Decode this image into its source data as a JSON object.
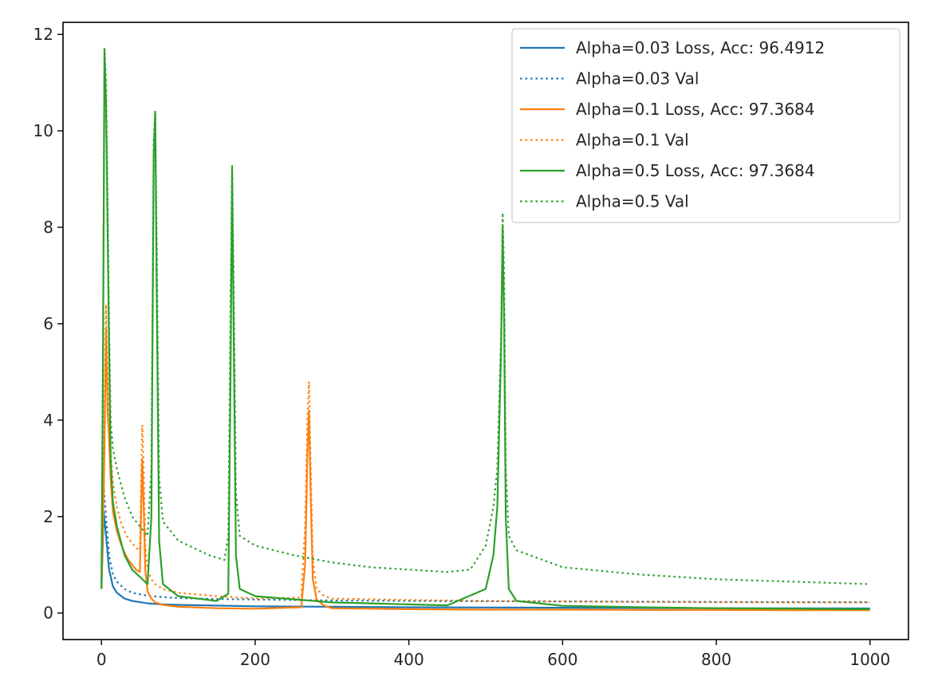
{
  "chart_data": {
    "type": "line",
    "title": "",
    "xlabel": "",
    "ylabel": "",
    "xlim": [
      -50,
      1050
    ],
    "ylim": [
      -0.55,
      12.25
    ],
    "xticks": [
      0,
      200,
      400,
      600,
      800,
      1000
    ],
    "yticks": [
      0,
      2,
      4,
      6,
      8,
      10,
      12
    ],
    "grid": false,
    "legend_position": "top-right",
    "series": [
      {
        "name": "Alpha=0.03 Loss, Acc: 96.4912",
        "color": "#1f77b4",
        "style": "solid",
        "x": [
          0,
          3,
          6,
          10,
          15,
          20,
          30,
          40,
          60,
          80,
          100,
          150,
          200,
          300,
          400,
          500,
          600,
          700,
          800,
          900,
          1000
        ],
        "y": [
          0.5,
          2.1,
          1.6,
          0.9,
          0.55,
          0.42,
          0.3,
          0.25,
          0.2,
          0.18,
          0.17,
          0.155,
          0.14,
          0.13,
          0.12,
          0.115,
          0.11,
          0.105,
          0.1,
          0.098,
          0.095
        ]
      },
      {
        "name": "Alpha=0.03 Val",
        "color": "#1f77b4",
        "style": "dotted",
        "x": [
          0,
          3,
          6,
          10,
          15,
          20,
          30,
          40,
          60,
          80,
          100,
          150,
          200,
          300,
          400,
          500,
          600,
          700,
          800,
          900,
          1000
        ],
        "y": [
          0.5,
          2.6,
          2.0,
          1.2,
          0.8,
          0.65,
          0.5,
          0.42,
          0.36,
          0.33,
          0.31,
          0.29,
          0.28,
          0.26,
          0.25,
          0.245,
          0.24,
          0.235,
          0.23,
          0.228,
          0.225
        ]
      },
      {
        "name": "Alpha=0.1 Loss, Acc: 97.3684",
        "color": "#ff7f0e",
        "style": "solid",
        "x": [
          0,
          3,
          6,
          8,
          10,
          12,
          15,
          20,
          25,
          30,
          35,
          40,
          45,
          50,
          53,
          55,
          57,
          60,
          65,
          70,
          80,
          100,
          150,
          200,
          260,
          265,
          268,
          270,
          272,
          275,
          280,
          290,
          300,
          400,
          500,
          600,
          700,
          800,
          900,
          1000
        ],
        "y": [
          0.5,
          2.5,
          5.9,
          4.2,
          3.6,
          2.8,
          2.1,
          1.7,
          1.45,
          1.25,
          1.1,
          1.0,
          0.9,
          0.85,
          3.2,
          2.2,
          0.9,
          0.45,
          0.3,
          0.22,
          0.17,
          0.13,
          0.1,
          0.09,
          0.12,
          1.0,
          3.3,
          4.2,
          2.6,
          0.7,
          0.28,
          0.15,
          0.1,
          0.08,
          0.07,
          0.07,
          0.065,
          0.065,
          0.06,
          0.06
        ]
      },
      {
        "name": "Alpha=0.1 Val",
        "color": "#ff7f0e",
        "style": "dotted",
        "x": [
          0,
          3,
          6,
          8,
          10,
          12,
          15,
          20,
          25,
          30,
          35,
          40,
          45,
          50,
          53,
          55,
          57,
          60,
          65,
          70,
          80,
          100,
          150,
          200,
          260,
          265,
          268,
          270,
          272,
          275,
          280,
          290,
          300,
          400,
          500,
          600,
          700,
          800,
          900,
          1000
        ],
        "y": [
          0.5,
          3.0,
          6.4,
          4.8,
          4.2,
          3.4,
          2.7,
          2.2,
          1.9,
          1.7,
          1.55,
          1.45,
          1.35,
          1.3,
          3.9,
          3.0,
          1.4,
          0.9,
          0.7,
          0.6,
          0.5,
          0.42,
          0.35,
          0.3,
          0.32,
          1.8,
          4.0,
          4.8,
          3.2,
          1.1,
          0.5,
          0.35,
          0.3,
          0.27,
          0.25,
          0.24,
          0.23,
          0.225,
          0.22,
          0.22
        ]
      },
      {
        "name": "Alpha=0.5 Loss, Acc: 97.3684",
        "color": "#2ca02c",
        "style": "solid",
        "x": [
          0,
          2,
          4,
          6,
          8,
          10,
          12,
          15,
          20,
          30,
          40,
          50,
          60,
          65,
          68,
          70,
          72,
          75,
          80,
          100,
          150,
          165,
          168,
          170,
          172,
          175,
          180,
          200,
          300,
          350,
          400,
          450,
          500,
          510,
          515,
          520,
          522,
          524,
          526,
          530,
          540,
          600,
          700,
          800,
          900,
          1000
        ],
        "y": [
          0.5,
          5.0,
          11.7,
          10.5,
          8.0,
          5.5,
          3.2,
          2.3,
          1.8,
          1.2,
          0.9,
          0.75,
          0.6,
          2.0,
          9.5,
          10.4,
          6.5,
          1.5,
          0.6,
          0.35,
          0.25,
          0.4,
          5.0,
          9.2,
          6.0,
          1.2,
          0.5,
          0.35,
          0.22,
          0.2,
          0.18,
          0.16,
          0.5,
          1.2,
          2.2,
          5.5,
          8.0,
          6.0,
          2.0,
          0.5,
          0.25,
          0.15,
          0.12,
          0.1,
          0.09,
          0.08
        ]
      },
      {
        "name": "Alpha=0.5 Val",
        "color": "#2ca02c",
        "style": "dotted",
        "x": [
          0,
          2,
          4,
          6,
          8,
          10,
          12,
          15,
          20,
          30,
          40,
          50,
          60,
          65,
          68,
          70,
          72,
          75,
          80,
          100,
          140,
          160,
          165,
          168,
          170,
          172,
          175,
          180,
          200,
          250,
          300,
          350,
          400,
          450,
          480,
          500,
          510,
          515,
          520,
          522,
          524,
          526,
          530,
          540,
          600,
          700,
          800,
          900,
          1000
        ],
        "y": [
          0.5,
          5.5,
          11.7,
          11.0,
          8.5,
          6.0,
          4.0,
          3.4,
          3.0,
          2.4,
          2.0,
          1.8,
          1.6,
          3.0,
          9.8,
          10.4,
          7.5,
          2.8,
          1.9,
          1.5,
          1.2,
          1.1,
          1.6,
          6.5,
          9.3,
          7.0,
          2.5,
          1.6,
          1.4,
          1.2,
          1.05,
          0.95,
          0.9,
          0.85,
          0.9,
          1.4,
          2.2,
          3.0,
          5.8,
          8.3,
          7.0,
          3.0,
          1.6,
          1.3,
          0.95,
          0.8,
          0.7,
          0.65,
          0.6
        ]
      }
    ]
  }
}
